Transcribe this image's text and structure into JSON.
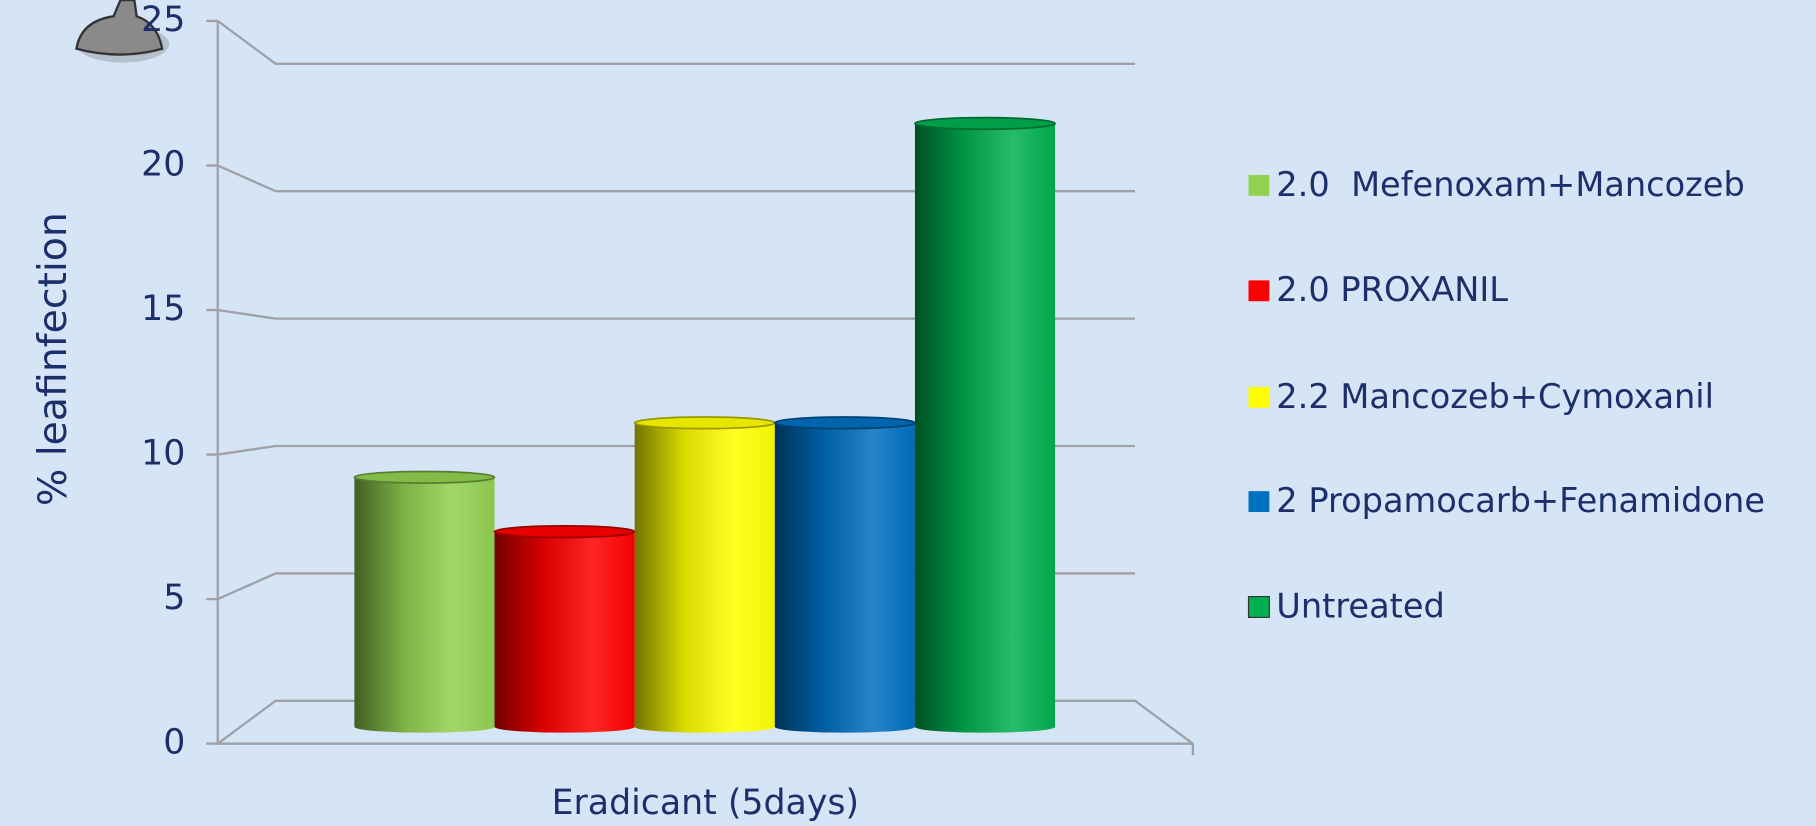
{
  "chart_data": {
    "type": "bar3d",
    "y_label": "% leafinfection",
    "categories": [
      "Eradicant (5days)"
    ],
    "series": [
      {
        "name": "2.0  Mefenoxam+Mancozeb",
        "color": "#92d050",
        "values": [
          9
        ]
      },
      {
        "name": "2.0 PROXANIL",
        "color": "#ff0000",
        "values": [
          7
        ]
      },
      {
        "name": "2.2 Mancozeb+Cymoxanil",
        "color": "#ffff00",
        "values": [
          11
        ]
      },
      {
        "name": "2 Propamocarb+Fenamidone",
        "color": "#0070c0",
        "values": [
          11
        ]
      },
      {
        "name": "Untreated",
        "color": "#00b050",
        "values": [
          22
        ]
      }
    ],
    "ylim": [
      0,
      25
    ],
    "yticks": [
      0,
      5,
      10,
      15,
      20,
      25
    ],
    "grid": true,
    "legend": "right"
  }
}
